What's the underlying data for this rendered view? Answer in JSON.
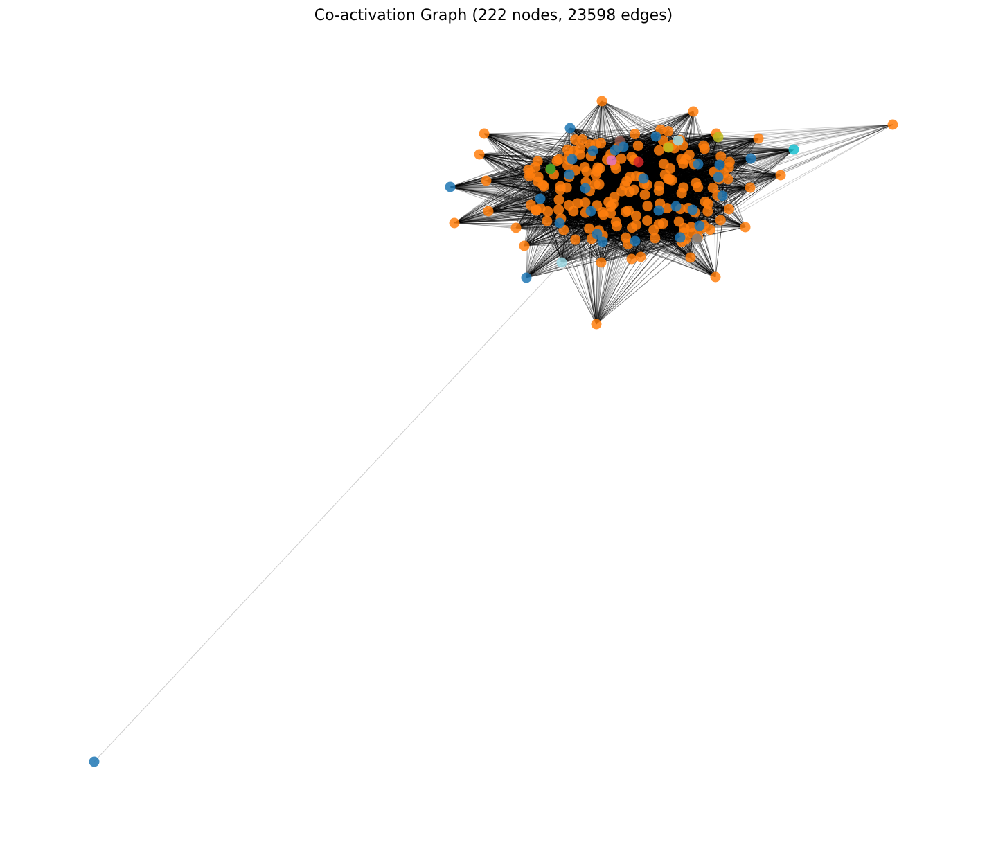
{
  "title": "Co-activation Graph (222 nodes, 23598 edges)",
  "chart_data": {
    "type": "network",
    "title": "Co-activation Graph (222 nodes, 23598 edges)",
    "node_count": 222,
    "edge_count": 23598,
    "axes": "off",
    "grid": false,
    "colors": {
      "majority_nodes": "#ff7f0e",
      "secondary_nodes": "#1f77b4",
      "light_cyan_nodes": "#9edae5",
      "cyan_nodes": "#17becf",
      "olive_nodes": "#bcbd22",
      "pink_nodes": "#e377c2",
      "red_nodes": "#d62728",
      "green_nodes": "#2ca02c",
      "brown_nodes": "#8c564b",
      "gray_nodes": "#7f7f7f",
      "edges": "#000000"
    }
  }
}
